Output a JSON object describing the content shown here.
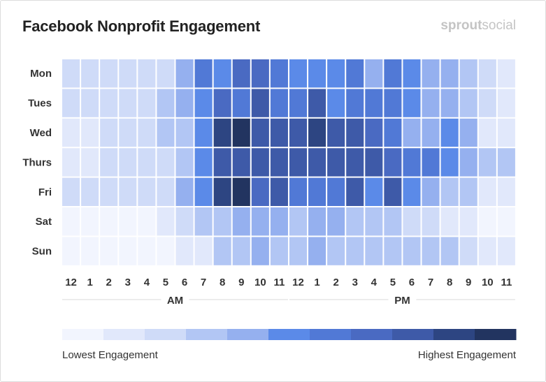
{
  "title": "Facebook Nonprofit Engagement",
  "brand": {
    "part1": "sprout",
    "part2": "social"
  },
  "legend": {
    "low_label": "Lowest Engagement",
    "high_label": "Highest Engagement"
  },
  "colors": {
    "scale": [
      "#f2f5fe",
      "#e1e8fb",
      "#cfdbf8",
      "#b2c6f4",
      "#95b0ef",
      "#5b8ae8",
      "#5179d6",
      "#4a6ac2",
      "#3e5aa8",
      "#2d4582",
      "#223460"
    ]
  },
  "chart_data": {
    "type": "heatmap",
    "title": "Facebook Nonprofit Engagement",
    "y_categories": [
      "Mon",
      "Tues",
      "Wed",
      "Thurs",
      "Fri",
      "Sat",
      "Sun"
    ],
    "x_categories": [
      "12",
      "1",
      "2",
      "3",
      "4",
      "5",
      "6",
      "7",
      "8",
      "9",
      "10",
      "11",
      "12",
      "1",
      "2",
      "3",
      "4",
      "5",
      "6",
      "7",
      "8",
      "9",
      "10",
      "11"
    ],
    "x_groups": [
      "AM",
      "PM"
    ],
    "value_range": [
      0,
      10
    ],
    "values": [
      [
        2,
        2,
        2,
        2,
        2,
        2,
        4,
        6,
        5,
        7,
        7,
        6,
        5,
        5,
        5,
        6,
        4,
        6,
        5,
        4,
        4,
        3,
        2,
        1
      ],
      [
        2,
        2,
        2,
        2,
        2,
        3,
        4,
        5,
        7,
        6,
        8,
        6,
        6,
        8,
        5,
        6,
        6,
        6,
        5,
        4,
        4,
        3,
        2,
        1
      ],
      [
        1,
        1,
        2,
        2,
        2,
        3,
        3,
        5,
        9,
        10,
        8,
        8,
        8,
        9,
        8,
        8,
        7,
        6,
        4,
        4,
        5,
        4,
        1,
        1
      ],
      [
        1,
        1,
        2,
        2,
        2,
        2,
        3,
        5,
        8,
        8,
        8,
        8,
        8,
        8,
        8,
        8,
        8,
        7,
        6,
        6,
        5,
        4,
        3,
        3
      ],
      [
        2,
        2,
        2,
        2,
        2,
        2,
        4,
        5,
        9,
        10,
        7,
        8,
        6,
        6,
        6,
        8,
        5,
        8,
        5,
        4,
        3,
        3,
        1,
        1
      ],
      [
        0,
        0,
        0,
        0,
        0,
        1,
        2,
        3,
        3,
        4,
        4,
        4,
        3,
        4,
        4,
        3,
        3,
        3,
        2,
        2,
        1,
        1,
        0,
        0
      ],
      [
        0,
        0,
        0,
        0,
        0,
        0,
        1,
        1,
        3,
        3,
        4,
        3,
        3,
        4,
        3,
        3,
        3,
        3,
        3,
        3,
        3,
        2,
        1,
        1
      ]
    ],
    "legend": {
      "low": "Lowest Engagement",
      "high": "Highest Engagement",
      "placement": "bottom"
    }
  }
}
